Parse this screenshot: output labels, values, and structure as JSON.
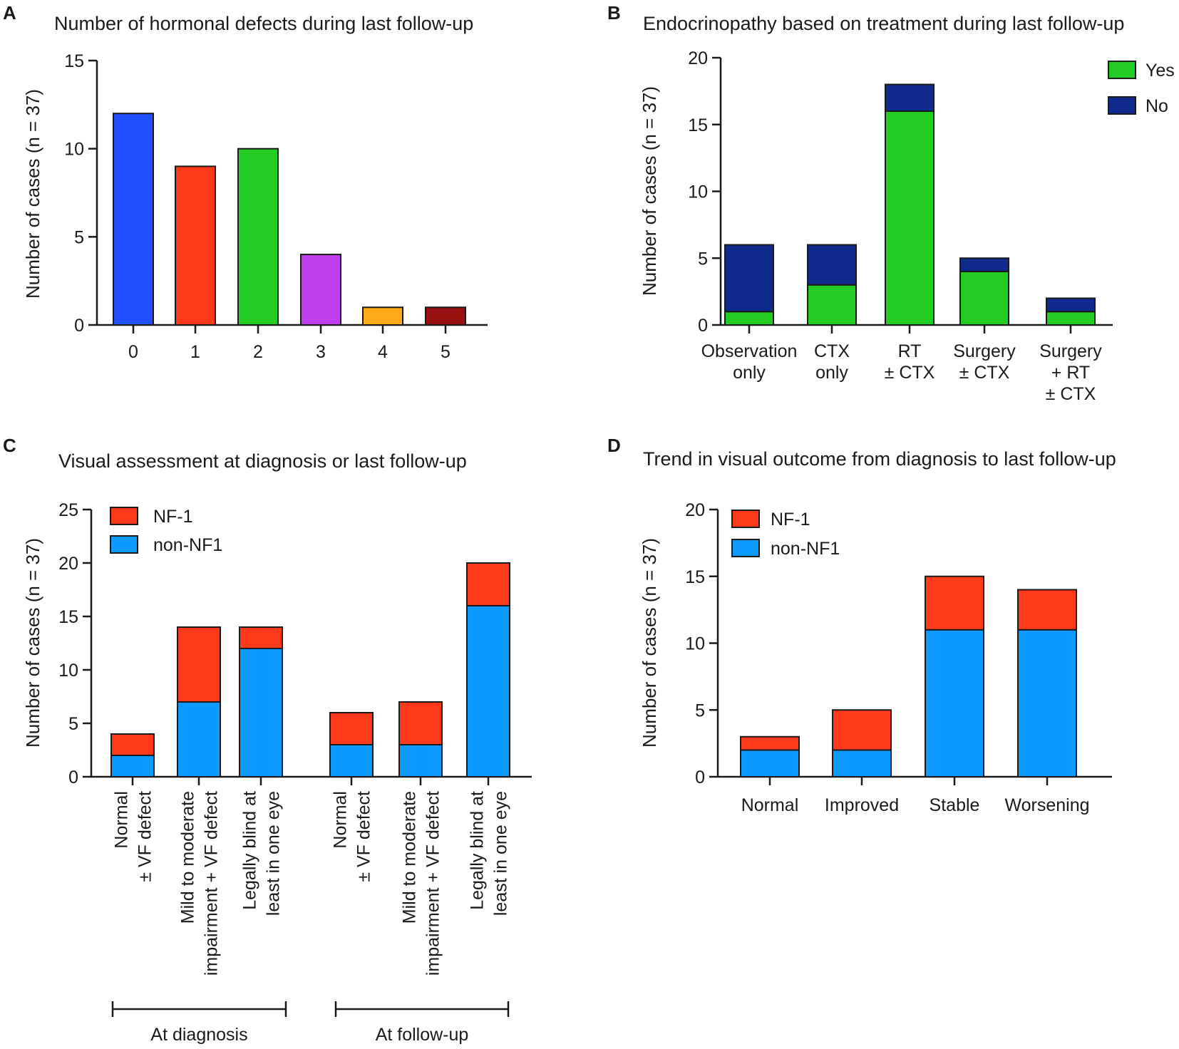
{
  "panels": [
    {
      "id": "A",
      "letter": "A",
      "chart_data": {
        "type": "bar",
        "title": "Number of hormonal defects during last follow-up",
        "xlabel": "",
        "ylabel": "Number of cases (n = 37)",
        "categories": [
          "0",
          "1",
          "2",
          "3",
          "4",
          "5"
        ],
        "values": [
          12,
          9,
          10,
          4,
          1,
          1
        ],
        "colors": [
          "#1f4fff",
          "#ff3a1a",
          "#22cc22",
          "#c040f0",
          "#ffaa1a",
          "#9a1010"
        ],
        "ylim": [
          0,
          15
        ],
        "yticks": [
          0,
          5,
          10,
          15
        ]
      }
    },
    {
      "id": "B",
      "letter": "B",
      "chart_data": {
        "type": "bar",
        "stacked": true,
        "title": "Endocrinopathy based on treatment during last follow-up",
        "xlabel": "",
        "ylabel": "Number of cases (n = 37)",
        "categories": [
          [
            "Observation",
            "only"
          ],
          [
            "CTX",
            "only"
          ],
          [
            "RT",
            "± CTX"
          ],
          [
            "Surgery",
            "± CTX"
          ],
          [
            "Surgery",
            "+ RT",
            "± CTX"
          ]
        ],
        "series": [
          {
            "name": "Yes",
            "color": "#22cc22",
            "values": [
              1,
              3,
              16,
              4,
              1
            ]
          },
          {
            "name": "No",
            "color": "#0d2a8c",
            "values": [
              5,
              3,
              2,
              1,
              1
            ]
          }
        ],
        "legend_position": "top-right",
        "ylim": [
          0,
          20
        ],
        "yticks": [
          0,
          5,
          10,
          15,
          20
        ]
      }
    },
    {
      "id": "C",
      "letter": "C",
      "chart_data": {
        "type": "bar",
        "stacked": true,
        "title": "Visual assessment at diagnosis or last follow-up",
        "xlabel": "",
        "ylabel": "Number of cases (n = 37)",
        "categories": [
          [
            "Normal",
            "± VF defect"
          ],
          [
            "Mild to moderate",
            "impairment + VF defect"
          ],
          [
            "Legally blind at",
            "least in one eye"
          ],
          [
            "Normal",
            "± VF defect"
          ],
          [
            "Mild to moderate",
            "impairment + VF defect"
          ],
          [
            "Legally blind at",
            "least in one eye"
          ]
        ],
        "groups": [
          {
            "label": "At diagnosis",
            "members": [
              0,
              1,
              2
            ]
          },
          {
            "label": "At follow-up",
            "members": [
              3,
              4,
              5
            ]
          }
        ],
        "series": [
          {
            "name": "non-NF1",
            "color": "#0d99ff",
            "values": [
              2,
              7,
              12,
              3,
              3,
              16
            ]
          },
          {
            "name": "NF-1",
            "color": "#ff3a1a",
            "values": [
              2,
              7,
              2,
              3,
              4,
              4
            ]
          }
        ],
        "legend_order": [
          "NF-1",
          "non-NF1"
        ],
        "legend_position": "top-left",
        "ylim": [
          0,
          25
        ],
        "yticks": [
          0,
          5,
          10,
          15,
          20,
          25
        ]
      }
    },
    {
      "id": "D",
      "letter": "D",
      "chart_data": {
        "type": "bar",
        "stacked": true,
        "title": "Trend in visual outcome from diagnosis to last follow-up",
        "xlabel": "",
        "ylabel": "Number of cases (n = 37)",
        "categories": [
          "Normal",
          "Improved",
          "Stable",
          "Worsening"
        ],
        "series": [
          {
            "name": "non-NF1",
            "color": "#0d99ff",
            "values": [
              2,
              2,
              11,
              11
            ]
          },
          {
            "name": "NF-1",
            "color": "#ff3a1a",
            "values": [
              1,
              3,
              4,
              3
            ]
          }
        ],
        "legend_order": [
          "NF-1",
          "non-NF1"
        ],
        "legend_position": "top-left",
        "ylim": [
          0,
          20
        ],
        "yticks": [
          0,
          5,
          10,
          15,
          20
        ]
      }
    }
  ]
}
